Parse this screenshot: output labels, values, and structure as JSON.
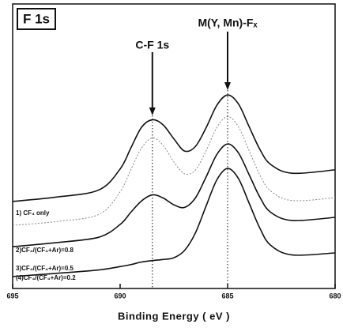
{
  "chart_data": {
    "type": "line",
    "title": "F 1s",
    "xlabel": "Binding Energy ( eV )",
    "xlim": [
      695,
      680
    ],
    "xticks": [
      695,
      690,
      685,
      680
    ],
    "ylim": [
      0,
      100
    ],
    "x": [
      695,
      693,
      691,
      690,
      689.5,
      689,
      688.5,
      688,
      687.5,
      687,
      686.5,
      686,
      685.5,
      685,
      684.5,
      684,
      683.5,
      683,
      682,
      680
    ],
    "series": [
      {
        "name": "1) CF₄ only",
        "color": "#111111",
        "dash": false,
        "values": [
          30.6,
          32.1,
          34.6,
          42.0,
          49.4,
          56.7,
          59.3,
          57.5,
          52.6,
          48.3,
          49.9,
          56.5,
          64.4,
          68.0,
          64.9,
          56.9,
          48.9,
          43.6,
          40.5,
          41.7
        ]
      },
      {
        "name": "2)CF₄/(CF₄+Ar)=0.8",
        "color": "#888888",
        "dash": true,
        "values": [
          22.2,
          23.5,
          26.0,
          34.0,
          41.8,
          49.4,
          52.9,
          50.3,
          44.5,
          40.3,
          41.6,
          48.4,
          56.6,
          60.4,
          56.9,
          48.5,
          39.9,
          34.3,
          30.9,
          31.9
        ]
      },
      {
        "name": "3)CF₄/(CF₄+Ar)=0.5",
        "color": "#111111",
        "dash": false,
        "values": [
          14.7,
          16.1,
          18.0,
          22.5,
          26.8,
          30.8,
          32.9,
          31.8,
          29.4,
          28.5,
          31.8,
          39.2,
          47.1,
          50.8,
          47.7,
          40.0,
          32.1,
          26.8,
          23.9,
          25.0
        ]
      },
      {
        "name": "(4)CF₄/(CF₄+Ar)=0.2",
        "color": "#111111",
        "dash": false,
        "values": [
          4.2,
          5.3,
          6.5,
          7.7,
          8.4,
          9.3,
          9.8,
          10.2,
          10.8,
          13.4,
          19.5,
          29.0,
          38.2,
          42.2,
          38.7,
          30.0,
          21.2,
          15.2,
          11.8,
          12.5
        ]
      }
    ],
    "annotations": [
      {
        "text": "C-F 1s",
        "x": 688.5
      },
      {
        "text": "M(Y, Mn)-Fₓ",
        "x": 685
      }
    ]
  }
}
